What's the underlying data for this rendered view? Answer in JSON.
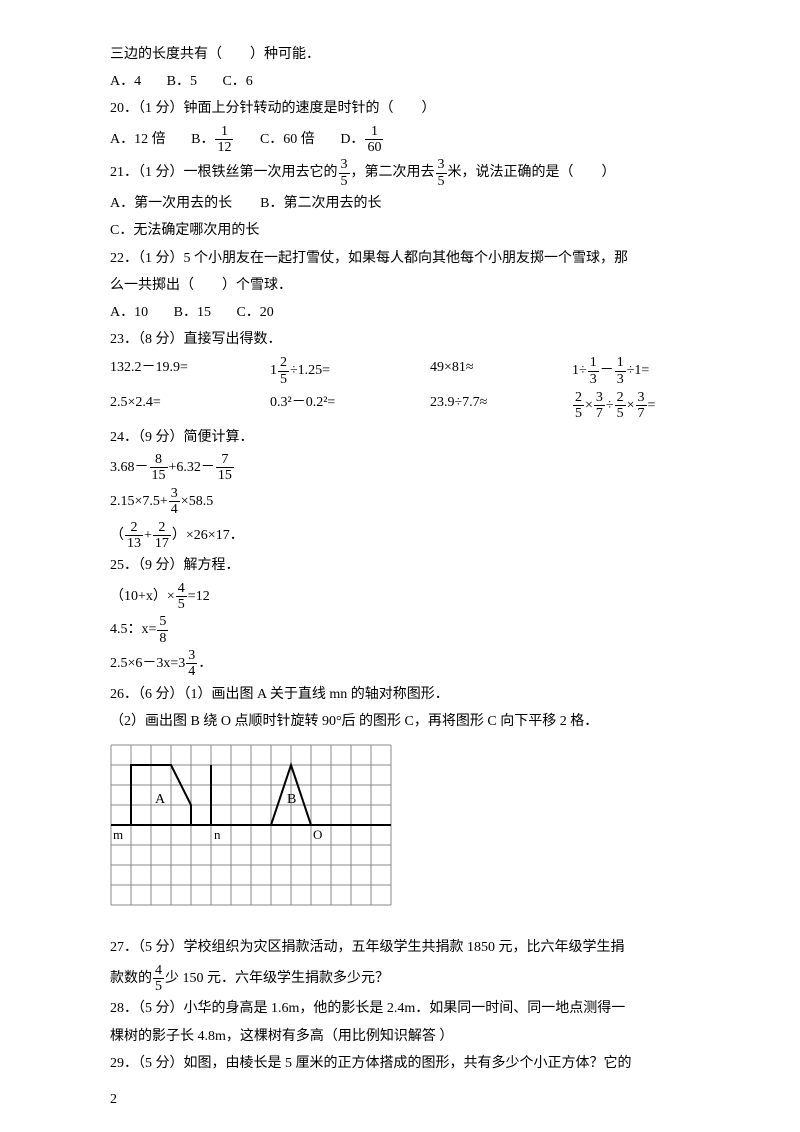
{
  "q_cont": "三边的长度共有（　　）种可能．",
  "q19_opts": [
    "A．4",
    "B．5",
    "C．6"
  ],
  "q20": "20．（1 分）钟面上分针转动的速度是时针的（　　）",
  "q20_opts": {
    "a": "A．12 倍",
    "b_pre": "B．",
    "b_num": "1",
    "b_den": "12",
    "c": "C．60 倍",
    "d_pre": "D．",
    "d_num": "1",
    "d_den": "60"
  },
  "q21_pre": "21．（1 分）一根铁丝第一次用去它的",
  "q21_f1_num": "3",
  "q21_f1_den": "5",
  "q21_mid": "，第二次用去",
  "q21_f2_num": "3",
  "q21_f2_den": "5",
  "q21_post": "米，说法正确的是（　　）",
  "q21_opts_ab": "A．第一次用去的长　　B．第二次用去的长",
  "q21_opt_c": "C．无法确定哪次用的长",
  "q22_a": "22．（1 分）5 个小朋友在一起打雪仗，如果每人都向其他每个小朋友掷一个雪球，那",
  "q22_b": "么一共掷出（　　）个雪球．",
  "q22_opts": [
    "A．10",
    "B．15",
    "C．20"
  ],
  "q23": "23．（8 分）直接写出得数．",
  "q23_r1": {
    "c1": "132.2－19.9=",
    "c2_pre": "1",
    "c2_num": "2",
    "c2_den": "5",
    "c2_post": "÷1.25=",
    "c3": "49×81≈",
    "c4_pre": "1÷",
    "c4_n1": "1",
    "c4_d1": "3",
    "c4_mid": "－",
    "c4_n2": "1",
    "c4_d2": "3",
    "c4_post": "÷1="
  },
  "q23_r2": {
    "c1": "2.5×2.4=",
    "c2": "0.3²－0.2²=",
    "c3": "23.9÷7.7≈",
    "c4_n1": "2",
    "c4_d1": "5",
    "c4_n2": "3",
    "c4_d2": "7",
    "c4_n3": "2",
    "c4_d3": "5",
    "c4_n4": "3",
    "c4_d4": "7"
  },
  "q24": "24．（9 分）简便计算．",
  "q24_e1_pre": "3.68－",
  "q24_e1_n1": "8",
  "q24_e1_d1": "15",
  "q24_e1_mid": "+6.32－",
  "q24_e1_n2": "7",
  "q24_e1_d2": "15",
  "q24_e2_pre": "2.15×7.5+",
  "q24_e2_n": "3",
  "q24_e2_d": "4",
  "q24_e2_post": "×58.5",
  "q24_e3_pre": "（",
  "q24_e3_n1": "2",
  "q24_e3_d1": "13",
  "q24_e3_mid": "+",
  "q24_e3_n2": "2",
  "q24_e3_d2": "17",
  "q24_e3_post": "）×26×17．",
  "q25": "25．（9 分）解方程．",
  "q25_e1_pre": "（10+x）×",
  "q25_e1_n": "4",
  "q25_e1_d": "5",
  "q25_e1_post": "=12",
  "q25_e2_pre": "4.5：x=",
  "q25_e2_n": "5",
  "q25_e2_d": "8",
  "q25_e3_pre": "2.5×6－3x=3",
  "q25_e3_n": "3",
  "q25_e3_d": "4",
  "q25_e3_post": "．",
  "q26a": "26．（6 分）（1）画出图 A 关于直线 mn 的轴对称图形．",
  "q26b": "（2）画出图 B 绕 O 点顺时针旋转 90°后 的图形 C，再将图形 C 向下平移 2 格．",
  "diagram": {
    "grid_cols": 14,
    "grid_rows": 8,
    "cell": 20,
    "grid_color": "#888888",
    "A_label": "A",
    "B_label": "B",
    "m_label": "m",
    "n_label": "n",
    "O_label": "O",
    "stroke": "#000000",
    "stroke_w": 2
  },
  "q27a": "27．（5 分）学校组织为灾区捐款活动，五年级学生共捐款 1850 元，比六年级学生捐",
  "q27b_pre": "款数的",
  "q27b_n": "4",
  "q27b_d": "5",
  "q27b_post": "少 150 元．六年级学生捐款多少元？",
  "q28a": "28．（5 分）小华的身高是 1.6m，他的影长是 2.4m．如果同一时间、同一地点测得一",
  "q28b": "棵树的影子长 4.8m，这棵树有多高（用比例知识解答 ）",
  "q29": "29．（5 分）如图，由棱长是 5 厘米的正方体搭成的图形，共有多少个小正方体？它的",
  "pagenum": "2"
}
